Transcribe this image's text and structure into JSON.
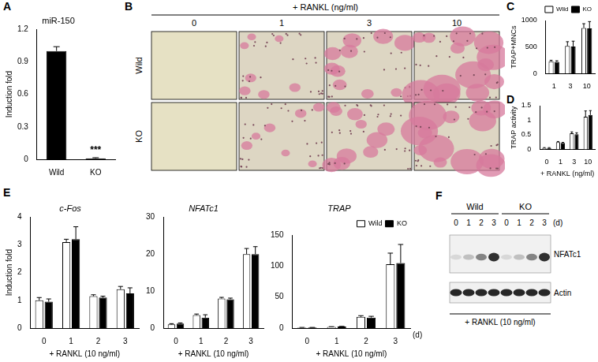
{
  "panel_letters": [
    "A",
    "B",
    "C",
    "D",
    "E",
    "F"
  ],
  "chart_data": [
    {
      "type": "bar",
      "title": "miR-150",
      "y_label": "Induction fold",
      "categories": [
        "Wild",
        "KO"
      ],
      "values": [
        1.0,
        0.01
      ],
      "errors": [
        0.04,
        0.005
      ],
      "color": "#000000",
      "ylim": [
        0,
        1.2
      ],
      "yticks": [
        0,
        0.3,
        0.6,
        0.9,
        1.2
      ],
      "grid": false,
      "annotations": [
        {
          "text": "***",
          "category": "KO"
        }
      ]
    },
    {
      "type": "bar",
      "y_label": "TRAP+MNCs",
      "categories": [
        "1",
        "3",
        "10"
      ],
      "series": [
        {
          "name": "Wild",
          "color": "#ffffff",
          "values": [
            230,
            520,
            860
          ],
          "errors": [
            20,
            80,
            80
          ]
        },
        {
          "name": "KO",
          "color": "#000000",
          "values": [
            220,
            510,
            850
          ],
          "errors": [
            20,
            100,
            130
          ]
        }
      ],
      "ylim": [
        0,
        1000
      ],
      "yticks": [
        0,
        500,
        1000
      ],
      "grid": false,
      "legend": "top"
    },
    {
      "type": "bar",
      "y_label": "TRAP activity",
      "x_label": "+ RANKL (ng/ml)",
      "categories": [
        "0",
        "1",
        "3",
        "10"
      ],
      "series": [
        {
          "name": "Wild",
          "color": "#ffffff",
          "values": [
            0.05,
            0.25,
            0.55,
            1.12
          ],
          "errors": [
            0.01,
            0.02,
            0.05,
            0.2
          ]
        },
        {
          "name": "KO",
          "color": "#000000",
          "values": [
            0.05,
            0.22,
            0.52,
            1.18
          ],
          "errors": [
            0.01,
            0.02,
            0.05,
            0.15
          ]
        }
      ],
      "ylim": [
        0,
        1.5
      ],
      "yticks": [
        0,
        0.5,
        1,
        1.5
      ],
      "grid": false
    },
    {
      "type": "bar",
      "title": "c-Fos",
      "y_label": "Induction fold",
      "x_label": "+ RANKL (10 ng/ml)",
      "categories": [
        "0",
        "1",
        "2",
        "3"
      ],
      "series": [
        {
          "name": "Wild",
          "color": "#ffffff",
          "values": [
            1.0,
            3.1,
            1.15,
            1.4
          ],
          "errors": [
            0.1,
            0.1,
            0.05,
            0.1
          ]
        },
        {
          "name": "KO",
          "color": "#000000",
          "values": [
            0.95,
            3.2,
            1.1,
            1.25
          ],
          "errors": [
            0.1,
            0.45,
            0.05,
            0.2
          ]
        }
      ],
      "ylim": [
        0,
        4
      ],
      "yticks": [
        0,
        1,
        2,
        3,
        4
      ],
      "grid": false
    },
    {
      "type": "bar",
      "title": "NFATc1",
      "x_label": "+ RANKL (10 ng/ml)",
      "categories": [
        "0",
        "1",
        "2",
        "3"
      ],
      "series": [
        {
          "name": "Wild",
          "color": "#ffffff",
          "values": [
            1,
            3.5,
            8,
            20
          ],
          "errors": [
            0.2,
            0.3,
            0.3,
            1.5
          ]
        },
        {
          "name": "KO",
          "color": "#000000",
          "values": [
            1.2,
            2.8,
            7.8,
            20
          ],
          "errors": [
            0.2,
            0.8,
            0.3,
            2
          ]
        }
      ],
      "ylim": [
        0,
        30
      ],
      "yticks": [
        0,
        10,
        20,
        30
      ],
      "grid": false
    },
    {
      "type": "bar",
      "title": "TRAP",
      "x_label": "+ RANKL (10 ng/ml)",
      "categories": [
        "0",
        "1",
        "2",
        "3"
      ],
      "series": [
        {
          "name": "Wild",
          "color": "#ffffff",
          "values": [
            1,
            2,
            18,
            103
          ],
          "errors": [
            0.1,
            0.3,
            2,
            18
          ]
        },
        {
          "name": "KO",
          "color": "#000000",
          "values": [
            1,
            2.5,
            17,
            105
          ],
          "errors": [
            0.1,
            0.3,
            2,
            30
          ]
        }
      ],
      "ylim": [
        0,
        150
      ],
      "yticks": [
        0,
        50,
        100,
        150
      ],
      "grid": false,
      "legend": "top",
      "annotations": [
        {
          "text": "(d)"
        }
      ]
    }
  ],
  "image_panel": {
    "header": "+ RANKL (ng/ml)",
    "columns": [
      "0",
      "1",
      "3",
      "10"
    ],
    "rows": [
      "Wild",
      "KO"
    ]
  },
  "blot_panel": {
    "groups": [
      "Wild",
      "KO"
    ],
    "lanes": [
      "0",
      "1",
      "2",
      "3"
    ],
    "unit": "(d)",
    "rows": [
      "NFATc1",
      "Actin"
    ],
    "footer": "+ RANKL (10 ng/ml)"
  }
}
